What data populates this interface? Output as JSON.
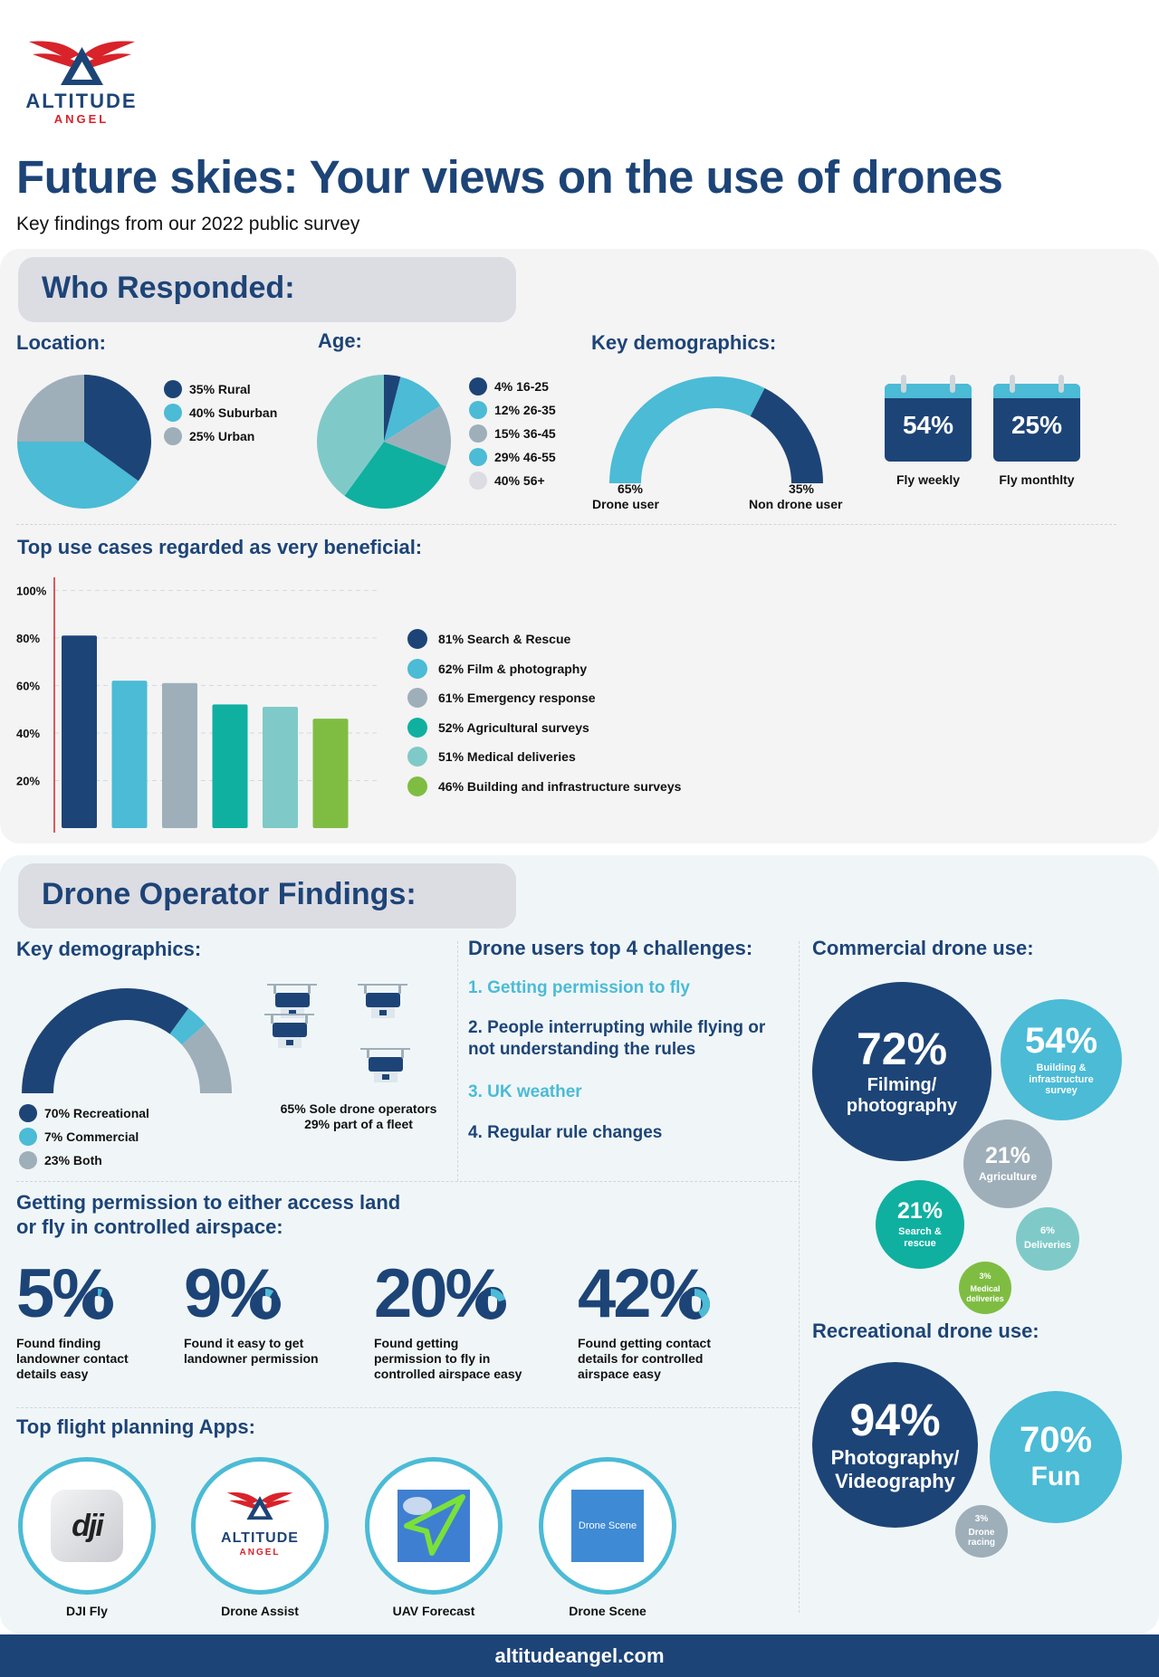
{
  "brand": {
    "name": "ALTITUDE",
    "sub": "ANGEL",
    "website": "altitudeangel.com",
    "navy": "#1d4477",
    "sky": "#4bbbd6",
    "grey": "#9eafba",
    "teal": "#0fb0a0",
    "mint": "#7fcac8",
    "green": "#7fbd42"
  },
  "header": {
    "title": "Future skies: Your views on the use of drones",
    "subtitle": "Key findings from our 2022 public survey"
  },
  "who": {
    "section_title": "Who Responded:",
    "location_label": "Location:",
    "age_label": "Age:",
    "demo_label": "Key demographics:",
    "drone_user_pct": "65%",
    "drone_user_label": "Drone user",
    "non_user_pct": "35%",
    "non_user_label": "Non drone user",
    "fly_weekly_pct": "54%",
    "fly_weekly_label": "Fly weekly",
    "fly_monthly_pct": "25%",
    "fly_monthly_label": "Fly monthlty",
    "bar_title": "Top use cases regarded as very beneficial:"
  },
  "operator": {
    "section_title": "Drone Operator Findings:",
    "demo_label": "Key demographics:",
    "sole_text": "65% Sole drone operators",
    "fleet_text": "29% part of a fleet",
    "challenges_title": "Drone users top 4 challenges:",
    "challenges": [
      {
        "text": "1. Getting permission to fly",
        "color": "#4bbbd6"
      },
      {
        "text": "2. People interrupting while flying or not understanding the rules",
        "color": "#1d4477"
      },
      {
        "text": "3. UK weather",
        "color": "#4bbbd6"
      },
      {
        "text": "4. Regular rule changes",
        "color": "#1d4477"
      }
    ],
    "permission_title_1": "Getting permission to either access land",
    "permission_title_2": "or fly in controlled airspace:",
    "permission": [
      {
        "num": "5",
        "sym": "%",
        "fraction": 0.05,
        "cap": [
          "Found finding",
          "landowner contact",
          "details easy"
        ]
      },
      {
        "num": "9",
        "sym": "%",
        "fraction": 0.09,
        "cap": [
          "Found it easy to get",
          "landowner permission"
        ]
      },
      {
        "num": "20",
        "sym": "%",
        "fraction": 0.2,
        "cap": [
          "Found getting",
          "permission to fly in",
          "controlled airspace easy"
        ]
      },
      {
        "num": "42",
        "sym": "%",
        "fraction": 0.42,
        "cap": [
          "Found getting contact",
          "details for controlled",
          "airspace easy"
        ]
      }
    ],
    "apps_title": "Top flight planning Apps:",
    "apps": [
      {
        "name": "DJI Fly",
        "logo": "dji"
      },
      {
        "name": "Drone Assist",
        "logo": "altitude-angel"
      },
      {
        "name": "UAV Forecast",
        "logo": "paper-plane"
      },
      {
        "name": "Drone Scene",
        "logo_text": "Drone Scene"
      }
    ],
    "commercial_title": "Commercial drone use:",
    "commercial": [
      {
        "pct": "72%",
        "label": "Filming/ photography",
        "color": "#1d4477"
      },
      {
        "pct": "54%",
        "label": "Building & infrastructure survey",
        "color": "#4bbbd6"
      },
      {
        "pct": "21%",
        "label": "Agriculture",
        "color": "#9eafba"
      },
      {
        "pct": "21%",
        "label": "Search & rescue",
        "color": "#0fb0a0"
      },
      {
        "pct": "6%",
        "label": "Deliveries",
        "color": "#7fcac8"
      },
      {
        "pct": "3%",
        "label": "Medical deliveries",
        "color": "#7fbd42"
      }
    ],
    "recreational_title": "Recreational drone use:",
    "recreational": [
      {
        "pct": "94%",
        "label": "Photography/ Videography",
        "color": "#1d4477"
      },
      {
        "pct": "70%",
        "label": "Fun",
        "color": "#4bbbd6"
      },
      {
        "pct": "3%",
        "label": "Drone racing",
        "color": "#9eafba"
      }
    ]
  },
  "chart_data": [
    {
      "type": "pie",
      "name": "location",
      "slices": [
        {
          "label": "35% Rural",
          "value": 35,
          "color": "#1d4477"
        },
        {
          "label": "40% Suburban",
          "value": 40,
          "color": "#4bbbd6"
        },
        {
          "label": "25% Urban",
          "value": 25,
          "color": "#9eafba"
        }
      ]
    },
    {
      "type": "pie",
      "name": "age",
      "slices": [
        {
          "label": "4% 16-25",
          "value": 4,
          "color": "#1d4477"
        },
        {
          "label": "12% 26-35",
          "value": 12,
          "color": "#4bbbd6"
        },
        {
          "label": "15% 36-45",
          "value": 15,
          "color": "#9eafba"
        },
        {
          "label": "29% 46-55",
          "value": 29,
          "color": "#0fb0a0"
        },
        {
          "label": "40% 56+",
          "value": 40,
          "color": "#7fcac8"
        }
      ],
      "legend_colors": [
        "#1d4477",
        "#4bbbd6",
        "#9eafba",
        "#4bbbd6",
        "#dcdce3"
      ]
    },
    {
      "type": "pie",
      "name": "drone-user-gauge",
      "half_donut": true,
      "slices": [
        {
          "label": "Drone user",
          "value": 65,
          "color": "#4bbbd6"
        },
        {
          "label": "Non drone user",
          "value": 35,
          "color": "#1d4477"
        }
      ]
    },
    {
      "type": "bar",
      "name": "use-cases",
      "ylim": [
        0,
        100
      ],
      "yticks": [
        "20%",
        "40%",
        "60%",
        "80%",
        "100%"
      ],
      "ytick_values": [
        20,
        40,
        60,
        80,
        100
      ],
      "values": [
        81,
        62,
        61,
        52,
        51,
        46
      ],
      "labels": [
        "81% Search & Rescue",
        "62% Film & photography",
        "61% Emergency response",
        "52% Agricultural surveys",
        "51% Medical deliveries",
        "46% Building and infrastructure surveys"
      ],
      "colors": [
        "#1d4477",
        "#4bbbd6",
        "#9eafba",
        "#0fb0a0",
        "#7fcac8",
        "#7fbd42"
      ]
    },
    {
      "type": "pie",
      "name": "operator-type-gauge",
      "half_donut": true,
      "slices": [
        {
          "label": "70% Recreational",
          "value": 70,
          "color": "#1d4477"
        },
        {
          "label": "7% Commercial",
          "value": 7,
          "color": "#4bbbd6"
        },
        {
          "label": "23% Both",
          "value": 23,
          "color": "#9eafba"
        }
      ]
    }
  ]
}
